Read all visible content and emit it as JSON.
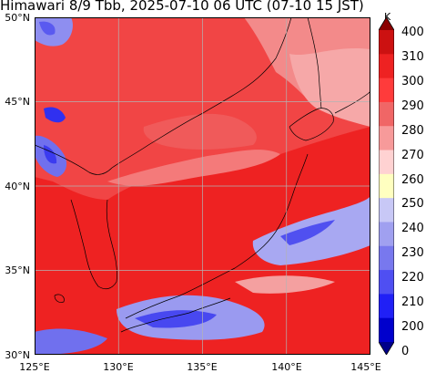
{
  "title": "Himawari 8/9 Tbb, 2025-07-10 06 UTC (07-10 15 JST)",
  "map": {
    "lat_labels": [
      "50°N",
      "45°N",
      "40°N",
      "35°N",
      "30°N"
    ],
    "lon_labels": [
      "125°E",
      "130°E",
      "135°E",
      "140°E",
      "145°E"
    ],
    "lat_range": [
      30,
      50
    ],
    "lon_range": [
      125,
      145
    ],
    "grid": true,
    "base_color": "#ee2222"
  },
  "colorbar": {
    "unit": "K",
    "ticks": [
      "400",
      "310",
      "300",
      "290",
      "280",
      "270",
      "260",
      "250",
      "240",
      "230",
      "220",
      "210",
      "200",
      "0"
    ],
    "colors": [
      "#8a0000",
      "#cc1111",
      "#ee2222",
      "#ff3b3b",
      "#f06666",
      "#f79a9a",
      "#ffd2d2",
      "#ffffc0",
      "#c8c8f6",
      "#a0a0f0",
      "#7878ee",
      "#4f4ff2",
      "#2020f6",
      "#0000cc",
      "#00008a"
    ]
  }
}
